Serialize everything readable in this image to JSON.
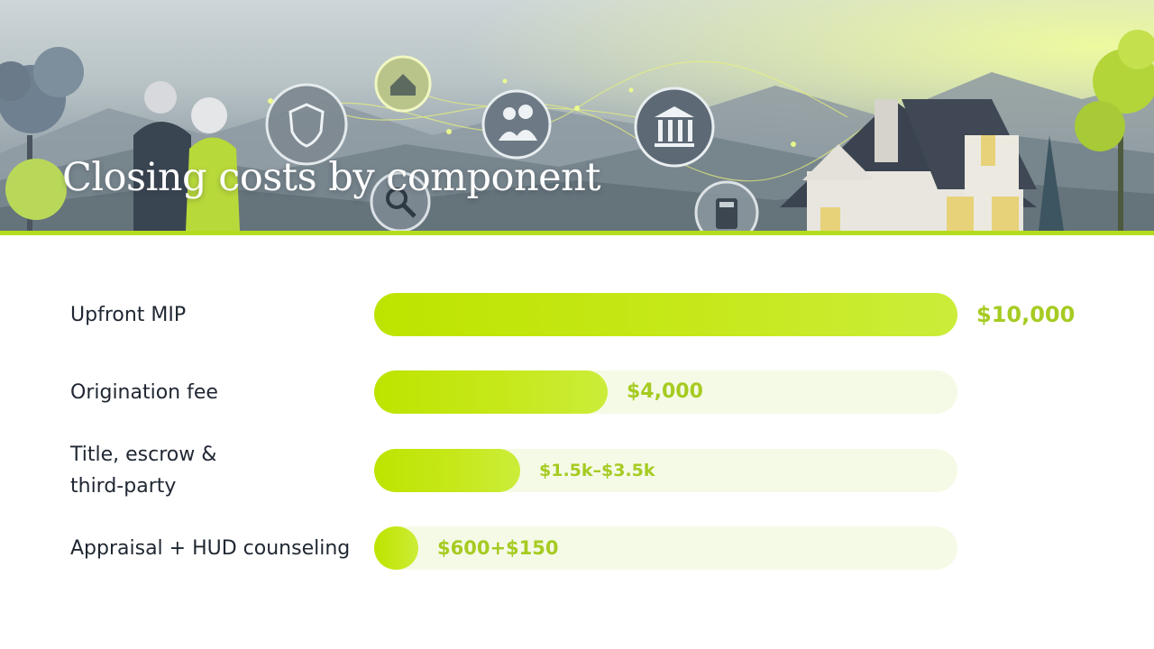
{
  "header": {
    "title": "Closing costs by component"
  },
  "colors": {
    "accent": "#b4dc1e",
    "bar_fill": "#c2e60f",
    "bar_track": "#f5fae6",
    "value_text": "#a6cb22",
    "label_text": "#1f2732"
  },
  "icons": [
    "shield-icon",
    "home-icon",
    "family-icon",
    "bank-icon",
    "search-icon",
    "calculator-icon"
  ],
  "chart_data": {
    "type": "bar",
    "orientation": "horizontal",
    "title": "Closing costs by component",
    "xlim": [
      0,
      10000
    ],
    "grid": false,
    "categories": [
      "Upfront MIP",
      "Origination fee",
      "Title, escrow & third-party",
      "Appraisal + HUD counseling"
    ],
    "values": [
      10000,
      4000,
      2500,
      750
    ],
    "value_labels": [
      "$10,000",
      "$4,000",
      "$1.5k–$3.5k",
      "$600+$150"
    ]
  }
}
